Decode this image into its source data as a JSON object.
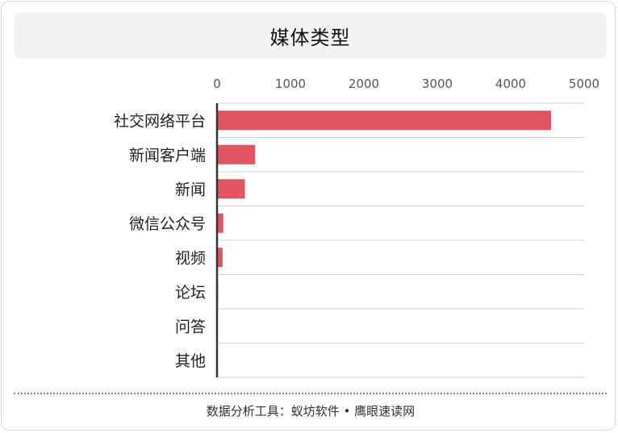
{
  "title": "媒体类型",
  "footer": "数据分析工具：蚁坊软件 • 鹰眼速读网",
  "colors": {
    "bar": "#e05560",
    "grid": "#cfcfcf",
    "axis": "#333333",
    "tick": "#555555"
  },
  "chart_data": {
    "type": "bar",
    "orientation": "horizontal",
    "title": "媒体类型",
    "categories": [
      "社交网络平台",
      "新闻客户端",
      "新闻",
      "微信公众号",
      "视频",
      "论坛",
      "问答",
      "其他"
    ],
    "values": [
      4550,
      520,
      380,
      85,
      75,
      15,
      3,
      2
    ],
    "xlim": [
      0,
      5000
    ],
    "xticks": [
      "0",
      "1000",
      "2000",
      "3000",
      "4000",
      "5000"
    ],
    "x_axis_position": "top",
    "grid": true,
    "legend": "none"
  }
}
